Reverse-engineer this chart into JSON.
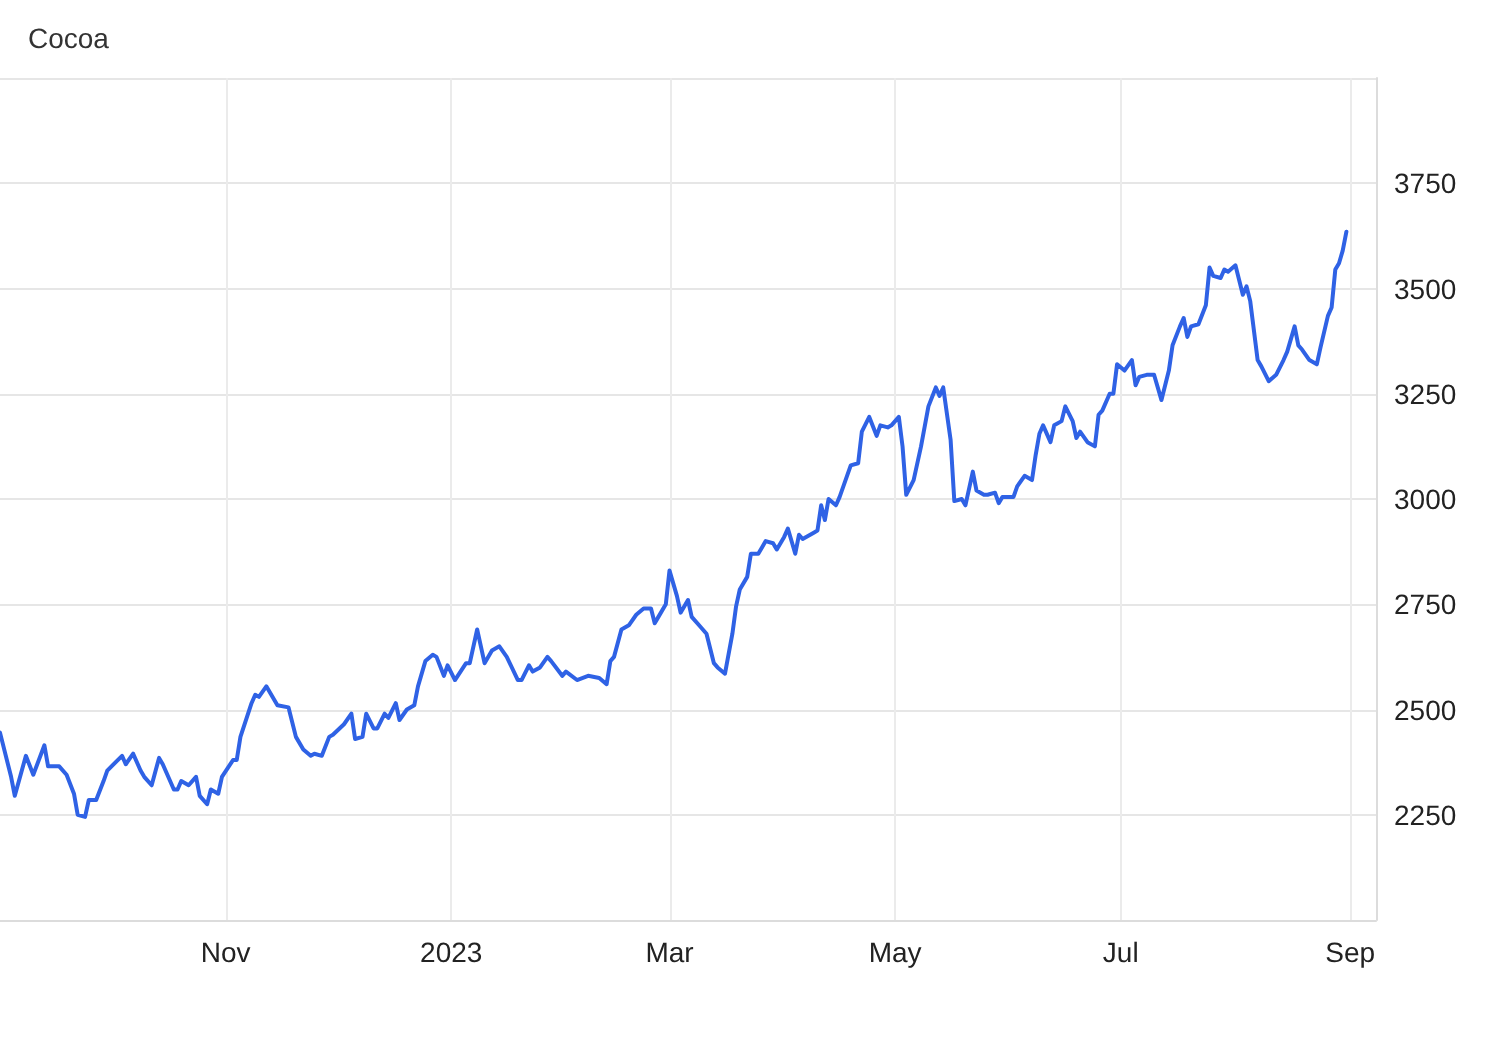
{
  "chart_data": {
    "type": "line",
    "title": "Cocoa",
    "x": [
      "2022-09-01",
      "2022-09-04",
      "2022-09-05",
      "2022-09-08",
      "2022-09-10",
      "2022-09-13",
      "2022-09-14",
      "2022-09-17",
      "2022-09-19",
      "2022-09-21",
      "2022-09-22",
      "2022-09-24",
      "2022-09-25",
      "2022-09-27",
      "2022-09-29",
      "2022-09-30",
      "2022-10-04",
      "2022-10-05",
      "2022-10-07",
      "2022-10-09",
      "2022-10-10",
      "2022-10-12",
      "2022-10-14",
      "2022-10-15",
      "2022-10-18",
      "2022-10-19",
      "2022-10-20",
      "2022-10-22",
      "2022-10-24",
      "2022-10-25",
      "2022-10-27",
      "2022-10-28",
      "2022-10-30",
      "2022-10-31",
      "2022-11-03",
      "2022-11-04",
      "2022-11-05",
      "2022-11-08",
      "2022-11-09",
      "2022-11-10",
      "2022-11-12",
      "2022-11-15",
      "2022-11-18",
      "2022-11-20",
      "2022-11-22",
      "2022-11-24",
      "2022-11-25",
      "2022-11-27",
      "2022-11-29",
      "2022-11-30",
      "2022-12-03",
      "2022-12-05",
      "2022-12-06",
      "2022-12-08",
      "2022-12-09",
      "2022-12-11",
      "2022-12-12",
      "2022-12-14",
      "2022-12-15",
      "2022-12-17",
      "2022-12-18",
      "2022-12-20",
      "2022-12-22",
      "2022-12-23",
      "2022-12-25",
      "2022-12-27",
      "2022-12-28",
      "2022-12-30",
      "2022-12-31",
      "2023-01-02",
      "2023-01-05",
      "2023-01-06",
      "2023-01-08",
      "2023-01-10",
      "2023-01-12",
      "2023-01-14",
      "2023-01-16",
      "2023-01-19",
      "2023-01-20",
      "2023-01-22",
      "2023-01-23",
      "2023-01-25",
      "2023-01-27",
      "2023-01-28",
      "2023-01-31",
      "2023-02-01",
      "2023-02-04",
      "2023-02-07",
      "2023-02-10",
      "2023-02-12",
      "2023-02-13",
      "2023-02-14",
      "2023-02-16",
      "2023-02-18",
      "2023-02-20",
      "2023-02-22",
      "2023-02-24",
      "2023-02-25",
      "2023-02-26",
      "2023-02-28",
      "2023-03-01",
      "2023-03-03",
      "2023-03-04",
      "2023-03-06",
      "2023-03-07",
      "2023-03-09",
      "2023-03-11",
      "2023-03-13",
      "2023-03-14",
      "2023-03-16",
      "2023-03-18",
      "2023-03-19",
      "2023-03-20",
      "2023-03-22",
      "2023-03-23",
      "2023-03-25",
      "2023-03-26",
      "2023-03-27",
      "2023-03-29",
      "2023-03-30",
      "2023-04-01",
      "2023-04-02",
      "2023-04-04",
      "2023-04-05",
      "2023-04-06",
      "2023-04-09",
      "2023-04-10",
      "2023-04-11",
      "2023-04-12",
      "2023-04-13",
      "2023-04-15",
      "2023-04-16",
      "2023-04-18",
      "2023-04-19",
      "2023-04-21",
      "2023-04-22",
      "2023-04-24",
      "2023-04-26",
      "2023-04-27",
      "2023-04-29",
      "2023-04-30",
      "2023-05-02",
      "2023-05-03",
      "2023-05-04",
      "2023-05-06",
      "2023-05-08",
      "2023-05-10",
      "2023-05-12",
      "2023-05-13",
      "2023-05-14",
      "2023-05-16",
      "2023-05-17",
      "2023-05-19",
      "2023-05-20",
      "2023-05-22",
      "2023-05-23",
      "2023-05-25",
      "2023-05-26",
      "2023-05-28",
      "2023-05-29",
      "2023-05-30",
      "2023-06-02",
      "2023-06-03",
      "2023-06-05",
      "2023-06-07",
      "2023-06-08",
      "2023-06-09",
      "2023-06-10",
      "2023-06-12",
      "2023-06-13",
      "2023-06-15",
      "2023-06-16",
      "2023-06-18",
      "2023-06-19",
      "2023-06-20",
      "2023-06-22",
      "2023-06-24",
      "2023-06-25",
      "2023-06-26",
      "2023-06-28",
      "2023-06-29",
      "2023-06-30",
      "2023-07-02",
      "2023-07-04",
      "2023-07-05",
      "2023-07-06",
      "2023-07-08",
      "2023-07-10",
      "2023-07-12",
      "2023-07-14",
      "2023-07-15",
      "2023-07-17",
      "2023-07-18",
      "2023-07-19",
      "2023-07-20",
      "2023-07-22",
      "2023-07-24",
      "2023-07-25",
      "2023-07-26",
      "2023-07-28",
      "2023-07-29",
      "2023-07-30",
      "2023-08-01",
      "2023-08-03",
      "2023-08-04",
      "2023-08-05",
      "2023-08-07",
      "2023-08-08",
      "2023-08-10",
      "2023-08-12",
      "2023-08-14",
      "2023-08-15",
      "2023-08-17",
      "2023-08-18",
      "2023-08-19",
      "2023-08-21",
      "2023-08-23",
      "2023-08-24",
      "2023-08-26",
      "2023-08-27",
      "2023-08-28",
      "2023-08-29",
      "2023-08-30",
      "2023-08-31"
    ],
    "series": [
      {
        "color": "#2f62e5",
        "values": [
          2445,
          2340,
          2295,
          2390,
          2345,
          2415,
          2365,
          2365,
          2345,
          2300,
          2250,
          2245,
          2285,
          2285,
          2330,
          2355,
          2390,
          2370,
          2395,
          2355,
          2340,
          2320,
          2385,
          2370,
          2310,
          2310,
          2330,
          2320,
          2340,
          2295,
          2275,
          2310,
          2300,
          2340,
          2380,
          2380,
          2435,
          2515,
          2535,
          2530,
          2555,
          2510,
          2505,
          2435,
          2405,
          2390,
          2395,
          2390,
          2435,
          2440,
          2465,
          2490,
          2430,
          2435,
          2490,
          2455,
          2455,
          2490,
          2480,
          2515,
          2475,
          2500,
          2510,
          2555,
          2615,
          2630,
          2625,
          2580,
          2605,
          2570,
          2610,
          2610,
          2690,
          2610,
          2640,
          2650,
          2625,
          2570,
          2570,
          2605,
          2590,
          2600,
          2625,
          2615,
          2580,
          2590,
          2570,
          2580,
          2575,
          2560,
          2615,
          2625,
          2690,
          2700,
          2725,
          2740,
          2740,
          2705,
          2720,
          2750,
          2830,
          2770,
          2730,
          2760,
          2720,
          2700,
          2680,
          2610,
          2600,
          2585,
          2680,
          2745,
          2785,
          2815,
          2870,
          2870,
          2885,
          2900,
          2895,
          2880,
          2910,
          2930,
          2870,
          2915,
          2905,
          2920,
          2925,
          2985,
          2950,
          3000,
          2985,
          3005,
          3055,
          3080,
          3085,
          3160,
          3195,
          3150,
          3175,
          3170,
          3175,
          3195,
          3125,
          3010,
          3045,
          3125,
          3220,
          3265,
          3245,
          3265,
          3140,
          2995,
          3000,
          2985,
          3065,
          3020,
          3010,
          3010,
          3015,
          2990,
          3005,
          3005,
          3030,
          3055,
          3045,
          3105,
          3155,
          3175,
          3135,
          3175,
          3185,
          3220,
          3185,
          3145,
          3160,
          3135,
          3125,
          3200,
          3210,
          3250,
          3250,
          3320,
          3305,
          3330,
          3270,
          3290,
          3295,
          3295,
          3235,
          3305,
          3365,
          3410,
          3430,
          3385,
          3410,
          3415,
          3460,
          3550,
          3530,
          3525,
          3545,
          3540,
          3555,
          3485,
          3505,
          3470,
          3330,
          3315,
          3280,
          3295,
          3330,
          3350,
          3410,
          3365,
          3355,
          3330,
          3320,
          3360,
          3435,
          3455,
          3545,
          3560,
          3590,
          3635
        ]
      }
    ],
    "xlim": [
      "2022-09-01",
      "2023-09-08"
    ],
    "xticks": [
      {
        "value": "2022-11-01",
        "label": "Nov"
      },
      {
        "value": "2023-01-01",
        "label": "2023"
      },
      {
        "value": "2023-03-01",
        "label": "Mar"
      },
      {
        "value": "2023-05-01",
        "label": "May"
      },
      {
        "value": "2023-07-01",
        "label": "Jul"
      },
      {
        "value": "2023-09-01",
        "label": "Sep"
      }
    ],
    "ylim": [
      2000,
      4000
    ],
    "yticks": [
      {
        "value": 2000,
        "label": null
      },
      2250,
      2500,
      2750,
      3000,
      3250,
      3500,
      3750,
      {
        "value": 4000,
        "label": null
      }
    ],
    "grid": true
  }
}
